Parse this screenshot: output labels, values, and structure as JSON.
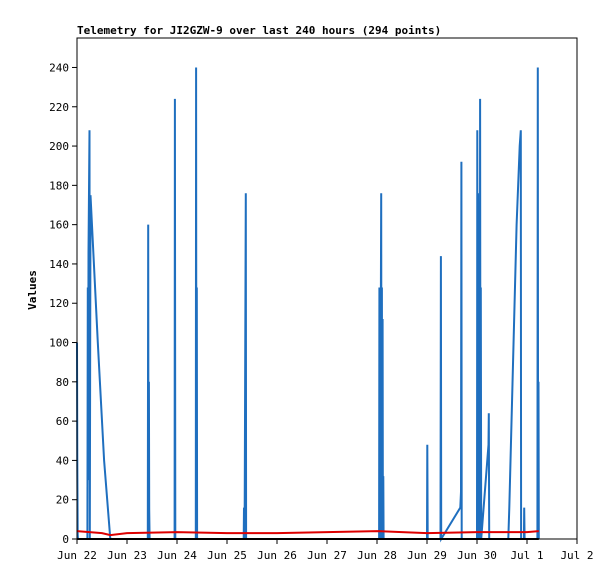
{
  "chart_data": {
    "type": "line",
    "title": "Telemetry for JI2GZW-9 over last 240 hours (294 points)",
    "xlabel": "",
    "ylabel": "Values",
    "xlim": [
      "2024-06-22",
      "2024-07-02"
    ],
    "ylim": [
      0,
      255
    ],
    "x_ticks": [
      "Jun 22",
      "Jun 23",
      "Jun 24",
      "Jun 25",
      "Jun 26",
      "Jun 27",
      "Jun 28",
      "Jun 29",
      "Jun 30",
      "Jul 1",
      "Jul 2"
    ],
    "y_ticks": [
      0,
      20,
      40,
      60,
      80,
      100,
      120,
      140,
      160,
      180,
      200,
      220,
      240
    ],
    "grid": false,
    "series": [
      {
        "color": "#1f6fbf",
        "points": [
          [
            "2024-06-22 00:00",
            100
          ],
          [
            "2024-06-22 00:10",
            40
          ],
          [
            "2024-06-22 00:20",
            2
          ],
          [
            "2024-06-22 00:30",
            0
          ],
          [
            "2024-06-22 05:00",
            0
          ],
          [
            "2024-06-22 05:10",
            128
          ],
          [
            "2024-06-22 05:20",
            30
          ],
          [
            "2024-06-22 05:30",
            146
          ],
          [
            "2024-06-22 06:00",
            208
          ],
          [
            "2024-06-22 06:10",
            0
          ],
          [
            "2024-06-22 06:30",
            175
          ],
          [
            "2024-06-22 10:00",
            100
          ],
          [
            "2024-06-22 13:00",
            40
          ],
          [
            "2024-06-22 16:00",
            0
          ],
          [
            "2024-06-23 10:00",
            0
          ],
          [
            "2024-06-23 10:10",
            160
          ],
          [
            "2024-06-23 10:20",
            0
          ],
          [
            "2024-06-23 10:30",
            80
          ],
          [
            "2024-06-23 10:40",
            15
          ],
          [
            "2024-06-23 10:50",
            0
          ],
          [
            "2024-06-23 22:50",
            0
          ],
          [
            "2024-06-23 23:00",
            224
          ],
          [
            "2024-06-23 23:10",
            0
          ],
          [
            "2024-06-24 09:00",
            0
          ],
          [
            "2024-06-24 09:10",
            240
          ],
          [
            "2024-06-24 09:20",
            0
          ],
          [
            "2024-06-24 09:30",
            128
          ],
          [
            "2024-06-24 09:40",
            0
          ],
          [
            "2024-06-25 08:00",
            0
          ],
          [
            "2024-06-25 08:10",
            16
          ],
          [
            "2024-06-25 08:20",
            0
          ],
          [
            "2024-06-25 08:30",
            16
          ],
          [
            "2024-06-25 09:00",
            176
          ],
          [
            "2024-06-25 09:10",
            0
          ],
          [
            "2024-06-28 01:00",
            0
          ],
          [
            "2024-06-28 01:10",
            128
          ],
          [
            "2024-06-28 01:20",
            64
          ],
          [
            "2024-06-28 01:30",
            0
          ],
          [
            "2024-06-28 01:40",
            64
          ],
          [
            "2024-06-28 02:00",
            176
          ],
          [
            "2024-06-28 02:10",
            0
          ],
          [
            "2024-06-28 02:20",
            128
          ],
          [
            "2024-06-28 02:30",
            0
          ],
          [
            "2024-06-28 02:40",
            112
          ],
          [
            "2024-06-28 02:50",
            0
          ],
          [
            "2024-06-28 03:00",
            32
          ],
          [
            "2024-06-28 03:10",
            0
          ],
          [
            "2024-06-29 00:00",
            0
          ],
          [
            "2024-06-29 00:10",
            48
          ],
          [
            "2024-06-29 00:20",
            0
          ],
          [
            "2024-06-29 06:30",
            0
          ],
          [
            "2024-06-29 06:40",
            144
          ],
          [
            "2024-06-29 06:50",
            0
          ],
          [
            "2024-06-29 16:00",
            16
          ],
          [
            "2024-06-29 16:20",
            24
          ],
          [
            "2024-06-29 16:30",
            192
          ],
          [
            "2024-06-29 16:40",
            0
          ],
          [
            "2024-06-30 00:00",
            0
          ],
          [
            "2024-06-30 00:10",
            208
          ],
          [
            "2024-06-30 00:20",
            0
          ],
          [
            "2024-06-30 00:30",
            176
          ],
          [
            "2024-06-30 00:40",
            64
          ],
          [
            "2024-06-30 00:50",
            152
          ],
          [
            "2024-06-30 01:00",
            0
          ],
          [
            "2024-06-30 01:10",
            110
          ],
          [
            "2024-06-30 01:20",
            0
          ],
          [
            "2024-06-30 01:30",
            224
          ],
          [
            "2024-06-30 01:40",
            0
          ],
          [
            "2024-06-30 01:50",
            128
          ],
          [
            "2024-06-30 02:00",
            0
          ],
          [
            "2024-06-30 05:30",
            48
          ],
          [
            "2024-06-30 05:40",
            64
          ],
          [
            "2024-06-30 05:50",
            0
          ],
          [
            "2024-06-30 15:00",
            0
          ],
          [
            "2024-06-30 15:30",
            16
          ],
          [
            "2024-06-30 19:00",
            160
          ],
          [
            "2024-06-30 20:30",
            200
          ],
          [
            "2024-06-30 21:00",
            208
          ],
          [
            "2024-06-30 21:10",
            0
          ],
          [
            "2024-06-30 22:30",
            0
          ],
          [
            "2024-06-30 22:40",
            16
          ],
          [
            "2024-06-30 22:50",
            0
          ],
          [
            "2024-07-01 05:00",
            0
          ],
          [
            "2024-07-01 05:10",
            240
          ],
          [
            "2024-07-01 05:20",
            0
          ],
          [
            "2024-07-01 05:30",
            80
          ],
          [
            "2024-07-01 05:40",
            0
          ]
        ]
      },
      {
        "color": "#dd0000",
        "points": [
          [
            "2024-06-22 00:00",
            4
          ],
          [
            "2024-06-22 06:00",
            3.5
          ],
          [
            "2024-06-22 12:00",
            3
          ],
          [
            "2024-06-22 16:00",
            2
          ],
          [
            "2024-06-23 00:00",
            3
          ],
          [
            "2024-06-24 00:00",
            3.5
          ],
          [
            "2024-06-25 00:00",
            3
          ],
          [
            "2024-06-26 00:00",
            3
          ],
          [
            "2024-06-27 00:00",
            3.5
          ],
          [
            "2024-06-28 00:00",
            4
          ],
          [
            "2024-06-28 12:00",
            3.5
          ],
          [
            "2024-06-29 00:00",
            3
          ],
          [
            "2024-06-30 00:00",
            3.5
          ],
          [
            "2024-06-30 12:00",
            3.5
          ],
          [
            "2024-07-01 00:00",
            3.5
          ],
          [
            "2024-07-01 05:40",
            4
          ]
        ]
      },
      {
        "color": "#000000",
        "points": [
          [
            "2024-06-22 00:00",
            0
          ],
          [
            "2024-07-01 05:40",
            0
          ]
        ]
      }
    ]
  }
}
